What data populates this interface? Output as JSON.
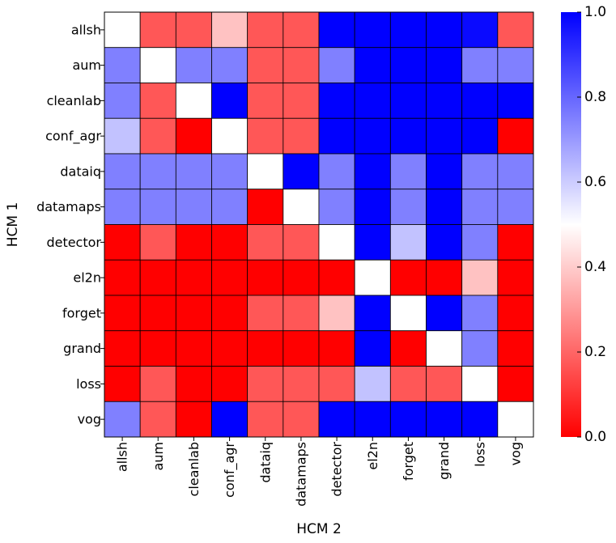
{
  "chart_data": {
    "type": "heatmap",
    "title": "",
    "xlabel": "HCM 2",
    "ylabel": "HCM 1",
    "row_labels": [
      "allsh",
      "aum",
      "cleanlab",
      "conf_agr",
      "dataiq",
      "datamaps",
      "detector",
      "el2n",
      "forget",
      "grand",
      "loss",
      "vog"
    ],
    "col_labels": [
      "allsh",
      "aum",
      "cleanlab",
      "conf_agr",
      "dataiq",
      "datamaps",
      "detector",
      "el2n",
      "forget",
      "grand",
      "loss",
      "vog"
    ],
    "values": [
      [
        0.5,
        0.17,
        0.17,
        0.38,
        0.17,
        0.17,
        1.0,
        1.0,
        1.0,
        1.0,
        0.98,
        0.17
      ],
      [
        0.75,
        0.5,
        0.75,
        0.75,
        0.17,
        0.17,
        0.75,
        1.0,
        1.0,
        1.0,
        0.75,
        0.75
      ],
      [
        0.75,
        0.17,
        0.5,
        1.0,
        0.17,
        0.17,
        1.0,
        1.0,
        1.0,
        1.0,
        1.0,
        1.0
      ],
      [
        0.62,
        0.17,
        0.0,
        0.5,
        0.17,
        0.17,
        1.0,
        1.0,
        1.0,
        1.0,
        1.0,
        0.0
      ],
      [
        0.75,
        0.75,
        0.75,
        0.75,
        0.5,
        1.0,
        0.75,
        1.0,
        0.75,
        1.0,
        0.75,
        0.75
      ],
      [
        0.75,
        0.75,
        0.75,
        0.75,
        0.0,
        0.5,
        0.75,
        1.0,
        0.75,
        1.0,
        0.75,
        0.75
      ],
      [
        0.0,
        0.17,
        0.0,
        0.0,
        0.17,
        0.17,
        0.5,
        1.0,
        0.62,
        1.0,
        0.75,
        0.0
      ],
      [
        0.0,
        0.0,
        0.0,
        0.0,
        0.0,
        0.0,
        0.0,
        0.5,
        0.0,
        0.0,
        0.38,
        0.0
      ],
      [
        0.0,
        0.0,
        0.0,
        0.0,
        0.17,
        0.17,
        0.38,
        1.0,
        0.5,
        1.0,
        0.75,
        0.0
      ],
      [
        0.0,
        0.0,
        0.0,
        0.0,
        0.0,
        0.0,
        0.0,
        1.0,
        0.0,
        0.5,
        0.75,
        0.0
      ],
      [
        0.0,
        0.17,
        0.0,
        0.0,
        0.17,
        0.17,
        0.17,
        0.62,
        0.17,
        0.17,
        0.5,
        0.0
      ],
      [
        0.75,
        0.17,
        0.0,
        1.0,
        0.17,
        0.17,
        1.0,
        1.0,
        1.0,
        1.0,
        1.0,
        0.5
      ]
    ],
    "vmin": 0.0,
    "vmax": 1.0,
    "colormap": [
      "#ff0000",
      "#ffffff",
      "#0000ff"
    ],
    "colorbar_ticks": [
      "0.0",
      "0.2",
      "0.4",
      "0.6",
      "0.8",
      "1.0"
    ],
    "colorbar_tick_values": [
      0.0,
      0.2,
      0.4,
      0.6,
      0.8,
      1.0
    ],
    "grid_color": "#000000"
  }
}
